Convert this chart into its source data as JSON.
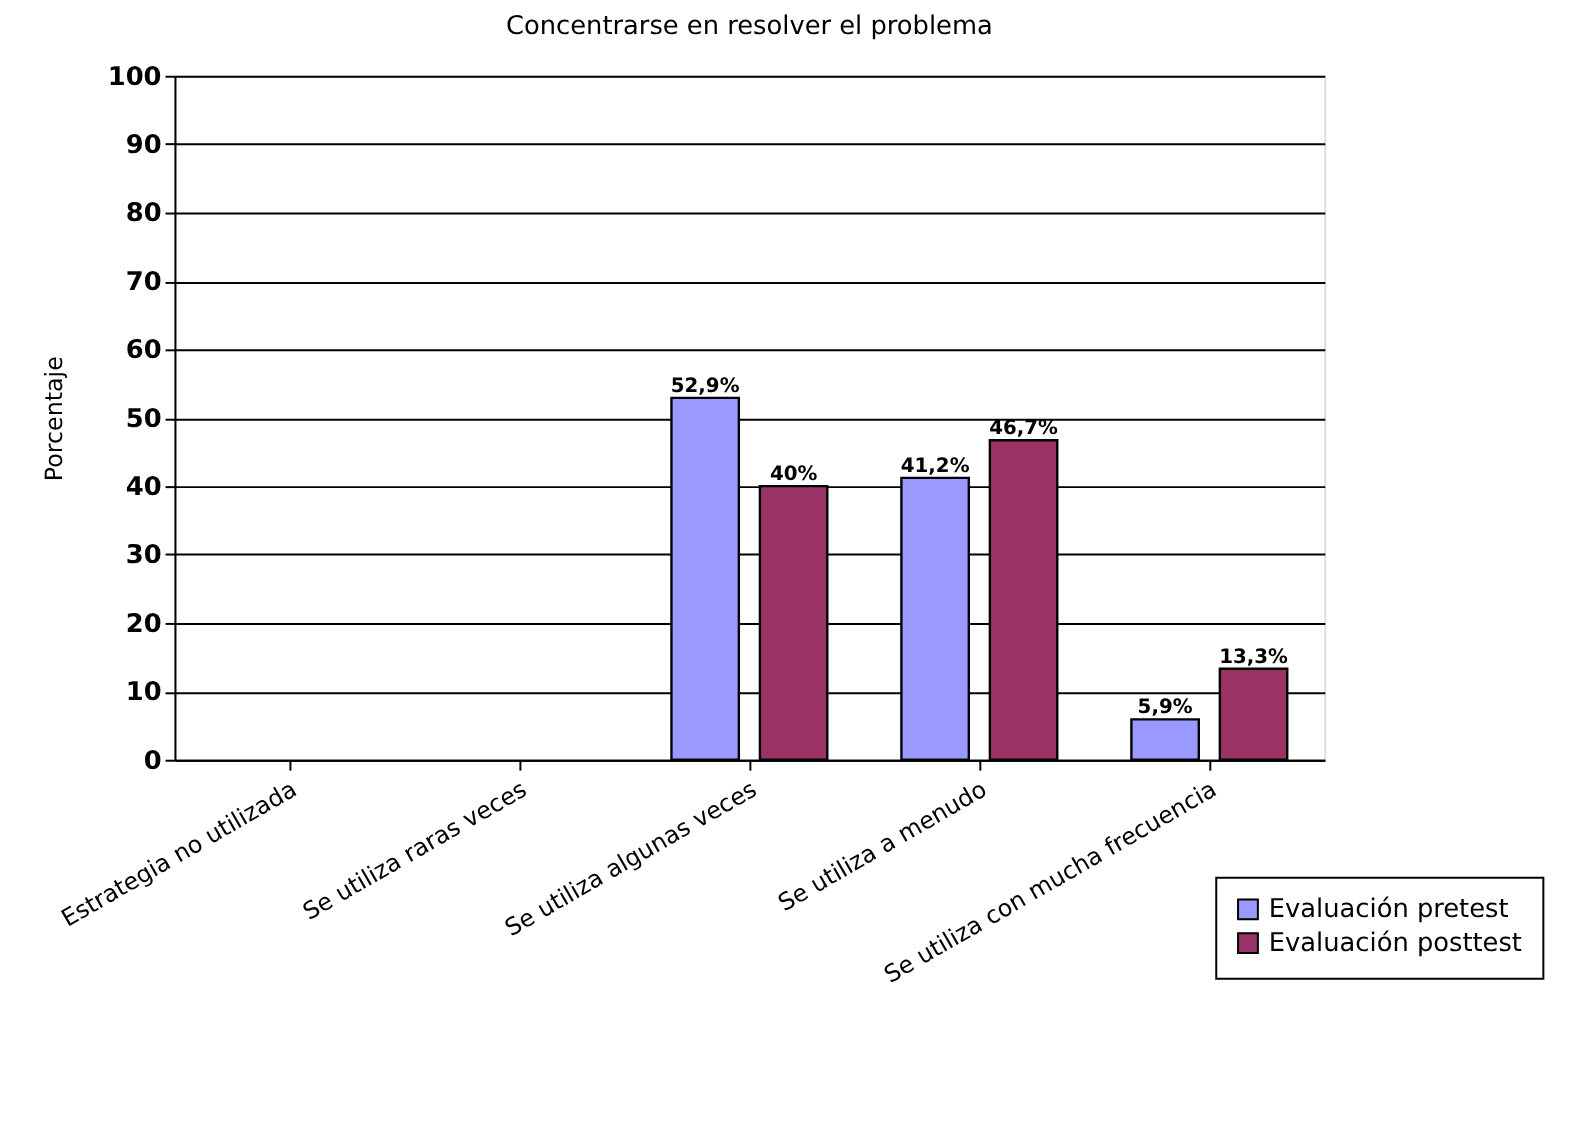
{
  "chart_data": {
    "type": "bar",
    "title": "Concentrarse en resolver el problema",
    "ylabel": "Porcentaje",
    "categories": [
      "Estrategia no utilizada",
      "Se utiliza raras veces",
      "Se utiliza algunas veces",
      "Se utiliza a menudo",
      "Se utiliza con mucha frecuencia"
    ],
    "series": [
      {
        "name": "Evaluación pretest",
        "color": "#9999ff",
        "values": [
          null,
          null,
          52.9,
          41.2,
          5.9
        ],
        "value_labels": [
          null,
          null,
          "52,9%",
          "41,2%",
          "5,9%"
        ]
      },
      {
        "name": "Evaluación posttest",
        "color": "#993366",
        "values": [
          null,
          null,
          40,
          46.7,
          13.3
        ],
        "value_labels": [
          null,
          null,
          "40%",
          "46,7%",
          "13,3%"
        ]
      }
    ],
    "ylim": [
      0,
      100
    ],
    "yticks": [
      0,
      10,
      20,
      30,
      40,
      50,
      60,
      70,
      80,
      90,
      100
    ],
    "grid": "y",
    "legend": "bottom right"
  }
}
